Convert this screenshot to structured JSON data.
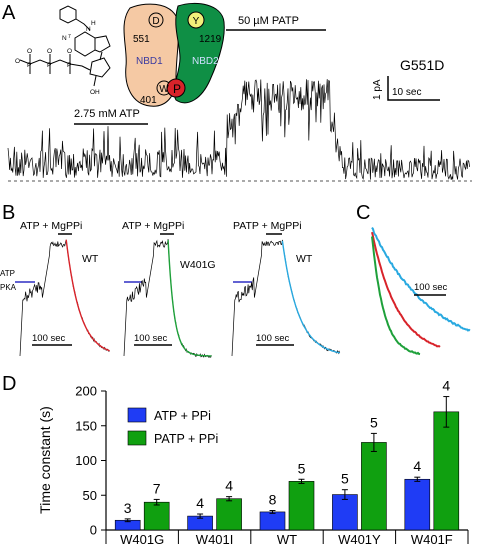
{
  "panels": {
    "A": {
      "letter": "A",
      "atp_label": "2.75 mM ATP",
      "patp_label": "50 µM PATP",
      "mutant": "G551D",
      "scale_current": "1 pA",
      "scale_time": "10 sec",
      "cartoon": {
        "nbd1": "NBD1",
        "nbd2": "NBD2",
        "res_d": "D",
        "res_y": "Y",
        "res_w": "W",
        "res_p": "P",
        "num_551": "551",
        "num_1219": "1219",
        "num_401": "401"
      },
      "molecule": {
        "atom_n": "N",
        "atom_h": "H",
        "atom_o": "O",
        "atom_p": "P",
        "label_n7": "N",
        "digit_7": "7",
        "label_oh": "OH"
      },
      "colors": {
        "nbd1": "#f5c9a4",
        "nbd2": "#0f8f45",
        "residue_p": "#d8232a",
        "residue_y": "#f2ef7a"
      }
    },
    "B": {
      "letter": "B",
      "traces": [
        {
          "title": "ATP + MgPPi",
          "genotype": "WT",
          "fit_color": "#d8232a"
        },
        {
          "title": "ATP + MgPPi",
          "genotype": "W401G",
          "fit_color": "#1ea03a"
        },
        {
          "title": "PATP + MgPPi",
          "genotype": "WT",
          "fit_color": "#29a9e0"
        }
      ],
      "atp_label": "ATP",
      "pka_label": "PKA",
      "scale_time": "100 sec",
      "marker_color": "#2f2fc4"
    },
    "C": {
      "letter": "C",
      "scale_time": "100 sec",
      "colors": [
        "#29a9e0",
        "#d8232a",
        "#1ea03a"
      ]
    }
  },
  "chart_data": {
    "type": "bar",
    "panel": "D",
    "categories": [
      "W401G",
      "W401I",
      "WT",
      "W401Y",
      "W401F"
    ],
    "series": [
      {
        "name": "ATP + PPi",
        "color": "#1f3cf5",
        "values": [
          14,
          20,
          26,
          51,
          73
        ],
        "errors": [
          2,
          3,
          2,
          7,
          3
        ],
        "n": [
          3,
          4,
          8,
          5,
          4
        ]
      },
      {
        "name": "PATP + PPi",
        "color": "#10a010",
        "values": [
          40,
          45,
          70,
          126,
          170
        ],
        "errors": [
          4,
          3,
          3,
          13,
          22
        ],
        "n": [
          7,
          4,
          5,
          5,
          4
        ]
      }
    ],
    "ylabel": "Time constant (s)",
    "xlabel": "",
    "ylim": [
      0,
      200
    ],
    "yticks": [
      0,
      50,
      100,
      150,
      200
    ],
    "legend": "top-left",
    "grid": false
  }
}
